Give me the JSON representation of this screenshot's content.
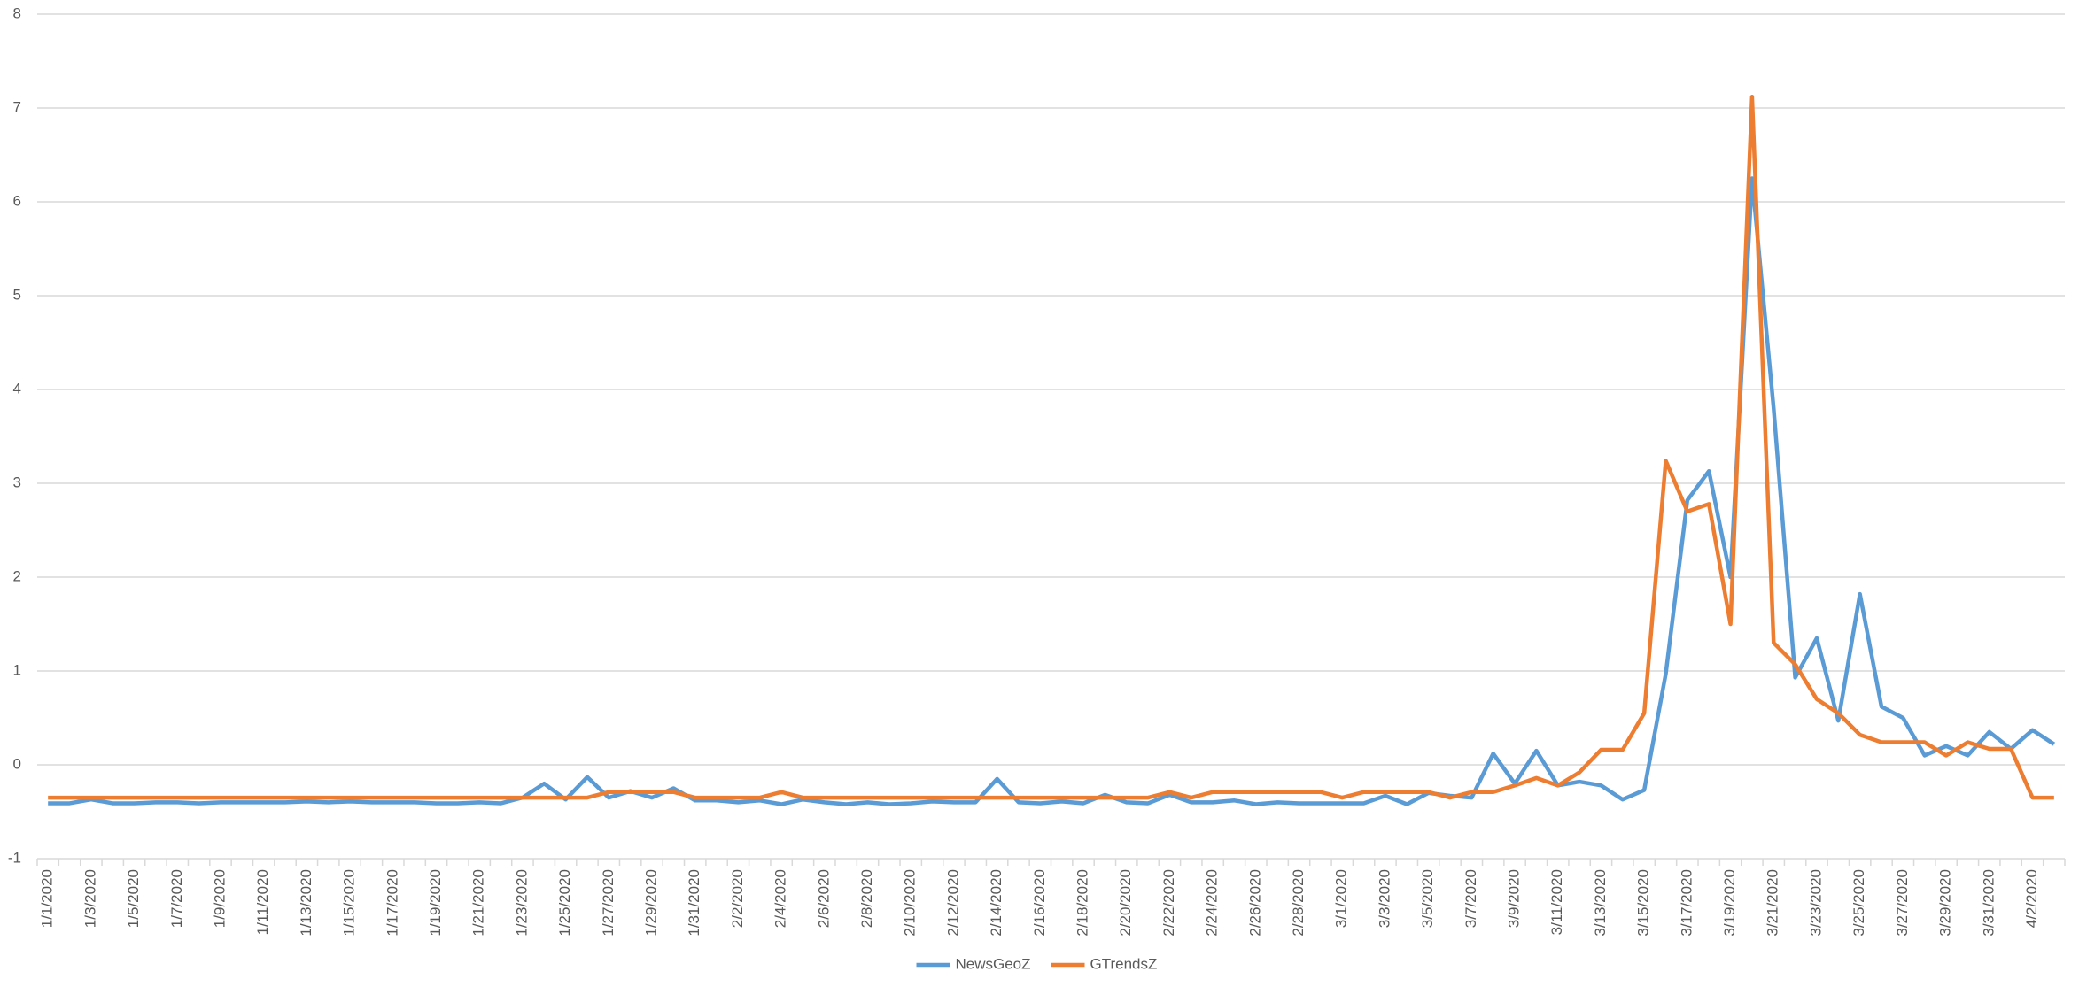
{
  "chart_data": {
    "type": "line",
    "categories": [
      "1/1/2020",
      null,
      "1/3/2020",
      null,
      "1/5/2020",
      null,
      "1/7/2020",
      null,
      "1/9/2020",
      null,
      "1/11/2020",
      null,
      "1/13/2020",
      null,
      "1/15/2020",
      null,
      "1/17/2020",
      null,
      "1/19/2020",
      null,
      "1/21/2020",
      null,
      "1/23/2020",
      null,
      "1/25/2020",
      null,
      "1/27/2020",
      null,
      "1/29/2020",
      null,
      "1/31/2020",
      null,
      "2/2/2020",
      null,
      "2/4/2020",
      null,
      "2/6/2020",
      null,
      "2/8/2020",
      null,
      "2/10/2020",
      null,
      "2/12/2020",
      null,
      "2/14/2020",
      null,
      "2/16/2020",
      null,
      "2/18/2020",
      null,
      "2/20/2020",
      null,
      "2/22/2020",
      null,
      "2/24/2020",
      null,
      "2/26/2020",
      null,
      "2/28/2020",
      null,
      "3/1/2020",
      null,
      "3/3/2020",
      null,
      "3/5/2020",
      null,
      "3/7/2020",
      null,
      "3/9/2020",
      null,
      "3/11/2020",
      null,
      "3/13/2020",
      null,
      "3/15/2020",
      null,
      "3/17/2020",
      null,
      "3/19/2020",
      null,
      "3/21/2020",
      null,
      "3/23/2020",
      null,
      "3/25/2020",
      null,
      "3/27/2020",
      null,
      "3/29/2020",
      null,
      "3/31/2020",
      null,
      "4/2/2020",
      null
    ],
    "series": [
      {
        "name": "NewsGeoZ",
        "color": "#5b9bd5",
        "values": [
          -0.41,
          -0.41,
          -0.37,
          -0.41,
          -0.41,
          -0.4,
          -0.4,
          -0.41,
          -0.4,
          -0.4,
          -0.4,
          -0.4,
          -0.39,
          -0.4,
          -0.39,
          -0.4,
          -0.4,
          -0.4,
          -0.41,
          -0.41,
          -0.4,
          -0.41,
          -0.35,
          -0.2,
          -0.37,
          -0.13,
          -0.35,
          -0.28,
          -0.35,
          -0.25,
          -0.38,
          -0.38,
          -0.4,
          -0.38,
          -0.42,
          -0.37,
          -0.4,
          -0.42,
          -0.4,
          -0.42,
          -0.41,
          -0.39,
          -0.4,
          -0.4,
          -0.15,
          -0.4,
          -0.41,
          -0.39,
          -0.41,
          -0.32,
          -0.4,
          -0.41,
          -0.32,
          -0.4,
          -0.4,
          -0.38,
          -0.42,
          -0.4,
          -0.41,
          -0.41,
          -0.41,
          -0.41,
          -0.33,
          -0.42,
          -0.3,
          -0.33,
          -0.35,
          0.12,
          -0.2,
          0.15,
          -0.22,
          -0.18,
          -0.22,
          -0.37,
          -0.27,
          0.97,
          2.82,
          3.13,
          2.0,
          6.25,
          3.8,
          0.93,
          1.35,
          0.47,
          1.82,
          0.62,
          0.5,
          0.1,
          0.2,
          0.1,
          0.35,
          0.17,
          0.37,
          0.22
        ]
      },
      {
        "name": "GTrendsZ",
        "color": "#ed7d31",
        "values": [
          -0.35,
          -0.35,
          -0.35,
          -0.35,
          -0.35,
          -0.35,
          -0.35,
          -0.35,
          -0.35,
          -0.35,
          -0.35,
          -0.35,
          -0.35,
          -0.35,
          -0.35,
          -0.35,
          -0.35,
          -0.35,
          -0.35,
          -0.35,
          -0.35,
          -0.35,
          -0.35,
          -0.35,
          -0.35,
          -0.35,
          -0.29,
          -0.29,
          -0.29,
          -0.29,
          -0.35,
          -0.35,
          -0.35,
          -0.35,
          -0.29,
          -0.35,
          -0.35,
          -0.35,
          -0.35,
          -0.35,
          -0.35,
          -0.35,
          -0.35,
          -0.35,
          -0.35,
          -0.35,
          -0.35,
          -0.35,
          -0.35,
          -0.35,
          -0.35,
          -0.35,
          -0.29,
          -0.35,
          -0.29,
          -0.29,
          -0.29,
          -0.29,
          -0.29,
          -0.29,
          -0.35,
          -0.29,
          -0.29,
          -0.29,
          -0.29,
          -0.35,
          -0.29,
          -0.29,
          -0.22,
          -0.14,
          -0.22,
          -0.08,
          0.16,
          0.16,
          0.55,
          3.24,
          2.7,
          2.78,
          1.5,
          7.12,
          1.3,
          1.07,
          0.7,
          0.55,
          0.32,
          0.24,
          0.24,
          0.24,
          0.1,
          0.24,
          0.17,
          0.17,
          -0.35,
          -0.35
        ]
      }
    ],
    "ylim": [
      -1,
      8
    ],
    "yticks": [
      -1,
      0,
      1,
      2,
      3,
      4,
      5,
      6,
      7,
      8
    ],
    "grid": true,
    "legend": "bottom"
  }
}
